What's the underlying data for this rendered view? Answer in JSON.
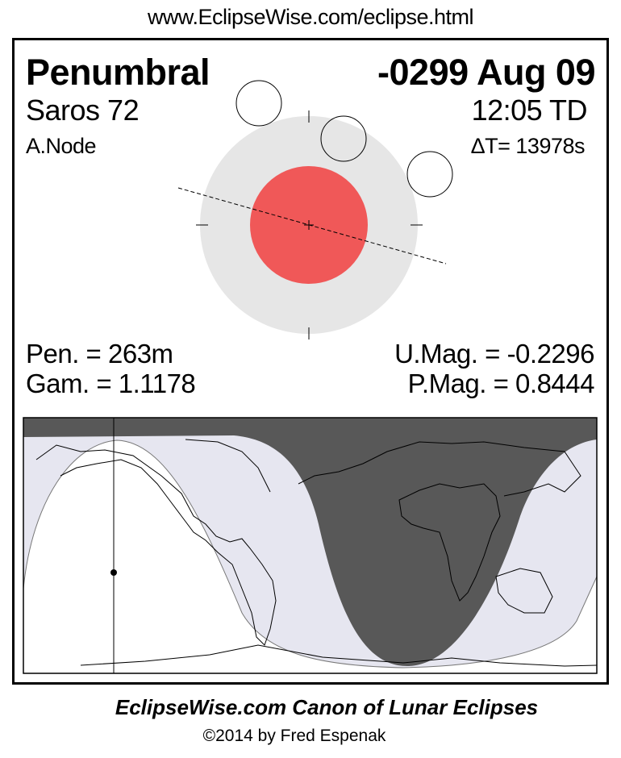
{
  "header": {
    "url": "www.EclipseWise.com/eclipse.html"
  },
  "eclipse": {
    "type": "Penumbral",
    "date": "-0299 Aug 09",
    "saros": "Saros  72",
    "time": "12:05 TD",
    "node": "A.Node",
    "delta_t": "ΔT=  13978s",
    "pen_duration": "Pen. = 263m",
    "gamma": "Gam. = 1.1178",
    "umbral_magnitude": "U.Mag. = -0.2296",
    "penumbral_magnitude": "P.Mag. = 0.8444"
  },
  "colors": {
    "umbra": "#f05858",
    "penumbra": "#e6e6e6",
    "map_night": "#585858",
    "map_penumbral": "#e6e6f0"
  },
  "footer": {
    "title": "EclipseWise.com Canon of Lunar Eclipses",
    "copyright": "©2014 by Fred Espenak"
  }
}
